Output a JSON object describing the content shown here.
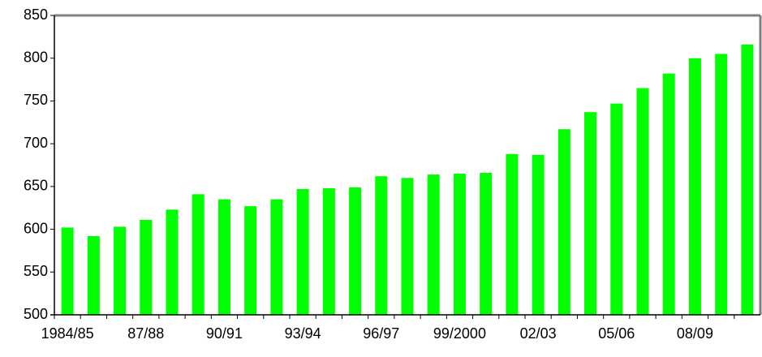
{
  "chart_data": {
    "type": "bar",
    "categories": [
      "1984/85",
      null,
      null,
      "87/88",
      null,
      null,
      "90/91",
      null,
      null,
      "93/94",
      null,
      null,
      "96/97",
      null,
      null,
      "99/2000",
      null,
      null,
      "02/03",
      null,
      null,
      "05/06",
      null,
      null,
      "08/09",
      null,
      null
    ],
    "values": [
      602,
      592,
      603,
      611,
      623,
      641,
      635,
      627,
      635,
      647,
      648,
      649,
      662,
      660,
      664,
      665,
      666,
      688,
      687,
      717,
      737,
      747,
      765,
      782,
      800,
      805,
      816
    ],
    "color": "#00ff00",
    "ylim": [
      500,
      850
    ],
    "yticks": [
      500,
      550,
      600,
      650,
      700,
      750,
      800,
      850
    ],
    "grid": false
  }
}
